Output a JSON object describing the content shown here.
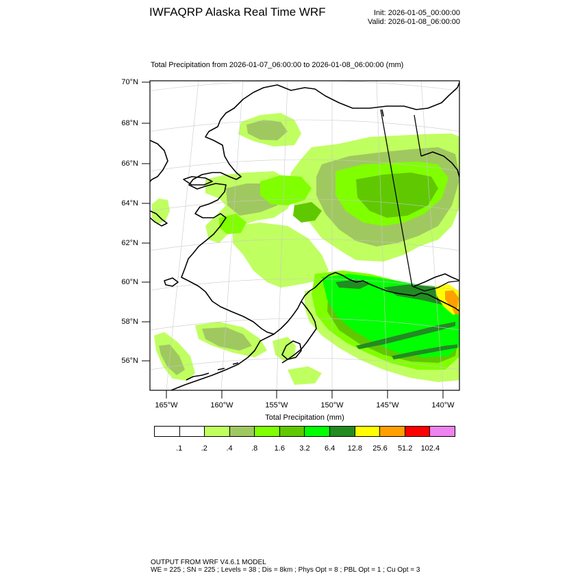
{
  "header": {
    "title": "IWFAQRP Alaska Real Time WRF",
    "init": "Init: 2026-01-05_00:00:00",
    "valid": "Valid: 2026-01-08_06:00:00"
  },
  "map": {
    "subtitle": "Total Precipitation from 2026-01-07_06:00:00 to 2026-01-08_06:00:00   (mm)",
    "lat_labels": [
      "70°N",
      "68°N",
      "66°N",
      "64°N",
      "62°N",
      "60°N",
      "58°N",
      "56°N"
    ],
    "lon_labels": [
      "165°W",
      "160°W",
      "155°W",
      "150°W",
      "145°W",
      "140°W"
    ],
    "coastline_color": "#000000",
    "gridline_color": "#c8c8c8"
  },
  "colorbar": {
    "title": "Total Precipitation  (mm)",
    "tick_labels": [
      ".1",
      ".2",
      ".4",
      ".8",
      "1.6",
      "3.2",
      "6.4",
      "12.8",
      "25.6",
      "51.2",
      "102.4"
    ],
    "colors": [
      "#ffffff",
      "#ffffff",
      "#c0ff60",
      "#a0c860",
      "#80ff00",
      "#60c800",
      "#00ff00",
      "#228b22",
      "#ffff00",
      "#ffa000",
      "#ff0000",
      "#ee82ee"
    ]
  },
  "footer": {
    "line1": "OUTPUT FROM WRF V4.6.1 MODEL",
    "line2": "WE = 225 ; SN = 225 ; Levels = 38 ; Dis = 8km ; Phys Opt = 8 ; PBL Opt = 1 ; Cu Opt = 3"
  }
}
